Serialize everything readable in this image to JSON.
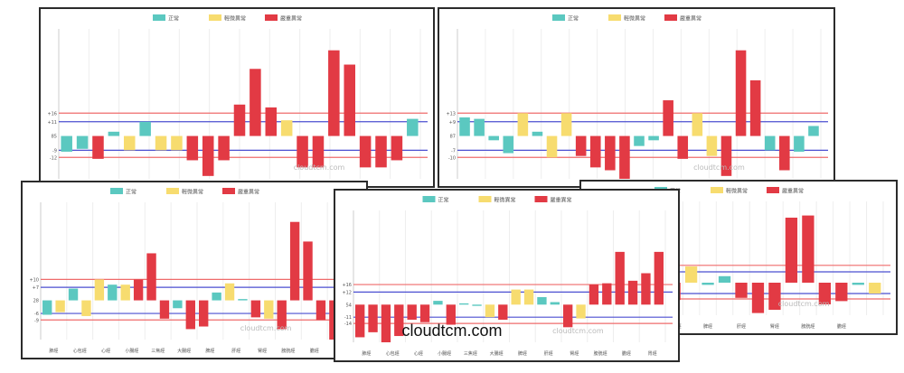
{
  "caption": "cloudtcm.com",
  "colors": {
    "normal": "#5bc8c0",
    "mild": "#f7dc6f",
    "severe": "#e23a44",
    "upper": "#ef6b6b",
    "lower": "#4b4fd1"
  },
  "chart_data": [
    {
      "type": "bar",
      "legend": [
        "正常",
        "輕微異常",
        "嚴重異常"
      ],
      "legend_position": "top-center",
      "watermark": "cloudtcm.com",
      "ylim": [
        -30,
        75
      ],
      "ref_upper": [
        "+16",
        "+11"
      ],
      "ref_lower": [
        "-9",
        "-12"
      ],
      "mid_label": "85",
      "xlabels": [],
      "values": [
        -11,
        -9,
        -16,
        3,
        -10,
        10,
        -10,
        -10,
        -17,
        -28,
        -17,
        22,
        47,
        20,
        11,
        -22,
        -22,
        60,
        50,
        -22,
        -22,
        -17,
        12
      ],
      "levels": [
        "normal",
        "normal",
        "severe",
        "normal",
        "mild",
        "normal",
        "mild",
        "mild",
        "severe",
        "severe",
        "severe",
        "severe",
        "severe",
        "severe",
        "mild",
        "severe",
        "severe",
        "severe",
        "severe",
        "severe",
        "severe",
        "severe",
        "normal"
      ]
    },
    {
      "type": "bar",
      "legend": [
        "正常",
        "輕微異常",
        "嚴重異常"
      ],
      "legend_position": "top-center",
      "watermark": "cloudtcm.com",
      "ylim": [
        -30,
        75
      ],
      "ref_upper": [
        "+13",
        "+9"
      ],
      "ref_lower": [
        "-7",
        "-10"
      ],
      "mid_label": "87",
      "xlabels": [],
      "values": [
        13,
        12,
        -3,
        -12,
        16,
        3,
        -15,
        16,
        -14,
        -22,
        -24,
        -30,
        -7,
        -3,
        25,
        -16,
        16,
        -14,
        -28,
        60,
        39,
        -10,
        -24,
        -11,
        7
      ],
      "levels": [
        "normal",
        "normal",
        "normal",
        "normal",
        "mild",
        "normal",
        "mild",
        "mild",
        "severe",
        "severe",
        "severe",
        "severe",
        "normal",
        "normal",
        "severe",
        "severe",
        "mild",
        "mild",
        "severe",
        "severe",
        "severe",
        "normal",
        "severe",
        "normal",
        "normal"
      ]
    },
    {
      "type": "bar",
      "legend": [
        "正常",
        "輕微異常",
        "嚴重異常"
      ],
      "legend_position": "top-center",
      "watermark": "cloudtcm.com",
      "ylim": [
        -30,
        75
      ],
      "ref_upper": [
        "+10",
        "+7"
      ],
      "ref_lower": [
        "-6",
        "-9"
      ],
      "mid_label": "28",
      "xlabels": [
        "肺經",
        "心包經",
        "心經",
        "小腸經",
        "三焦經",
        "大腸經",
        "脾經",
        "肝經",
        "腎經",
        "膀胱經",
        "膽經",
        "胃經"
      ],
      "values": [
        -11,
        -9,
        9,
        -12,
        16,
        12,
        12,
        16,
        36,
        -14,
        -6,
        -22,
        -20,
        6,
        13,
        1,
        -13,
        -14,
        -22,
        60,
        45,
        -15,
        -30,
        -13
      ],
      "levels": [
        "normal",
        "mild",
        "normal",
        "mild",
        "mild",
        "normal",
        "mild",
        "severe",
        "severe",
        "severe",
        "normal",
        "severe",
        "severe",
        "normal",
        "mild",
        "normal",
        "severe",
        "mild",
        "severe",
        "severe",
        "severe",
        "severe",
        "severe",
        "severe"
      ]
    },
    {
      "type": "bar",
      "legend": [
        "正常",
        "輕微異常",
        "嚴重異常"
      ],
      "legend_position": "top-center",
      "watermark": "cloudtcm.com",
      "ylim": [
        -30,
        75
      ],
      "ref_upper": [
        "+16",
        "+12"
      ],
      "ref_lower": [
        "-11",
        "-14"
      ],
      "mid_label": "54",
      "xlabels": [
        "肺經",
        "心包經",
        "心經",
        "小腸經",
        "三焦經",
        "大腸經",
        "脾經",
        "肝經",
        "腎經",
        "膀胱經",
        "膽經",
        "胃經"
      ],
      "values": [
        -26,
        -22,
        -30,
        -25,
        -12,
        -14,
        3,
        -16,
        1,
        -1,
        -10,
        -12,
        12,
        12,
        6,
        2,
        -18,
        -11,
        16,
        17,
        42,
        19,
        25,
        42
      ],
      "levels": [
        "severe",
        "severe",
        "severe",
        "severe",
        "severe",
        "severe",
        "normal",
        "severe",
        "normal",
        "normal",
        "mild",
        "severe",
        "mild",
        "mild",
        "normal",
        "normal",
        "severe",
        "mild",
        "severe",
        "severe",
        "severe",
        "severe",
        "severe",
        "severe"
      ]
    },
    {
      "type": "bar",
      "legend": [
        "正常",
        "輕微異常",
        "嚴重異常"
      ],
      "legend_position": "top-center",
      "watermark": "cloudtcm.com",
      "ylim": [
        -30,
        75
      ],
      "ref_upper": [
        "",
        ""
      ],
      "ref_lower": [
        "",
        ""
      ],
      "mid_label": "",
      "xlabels": [
        "",
        "",
        "三焦經",
        "",
        "大腸經",
        "",
        "脾經",
        "",
        "肝經",
        "",
        "腎經",
        "",
        "膀胱經",
        "",
        "膽經",
        "",
        ""
      ],
      "values": [
        2,
        6,
        5,
        -18,
        -16,
        15,
        -2,
        6,
        -14,
        -28,
        -25,
        60,
        62,
        -20,
        -17,
        -2,
        -10
      ],
      "levels": [
        "normal",
        "normal",
        "normal",
        "severe",
        "severe",
        "mild",
        "normal",
        "normal",
        "severe",
        "severe",
        "severe",
        "severe",
        "severe",
        "severe",
        "severe",
        "normal",
        "mild"
      ]
    }
  ]
}
